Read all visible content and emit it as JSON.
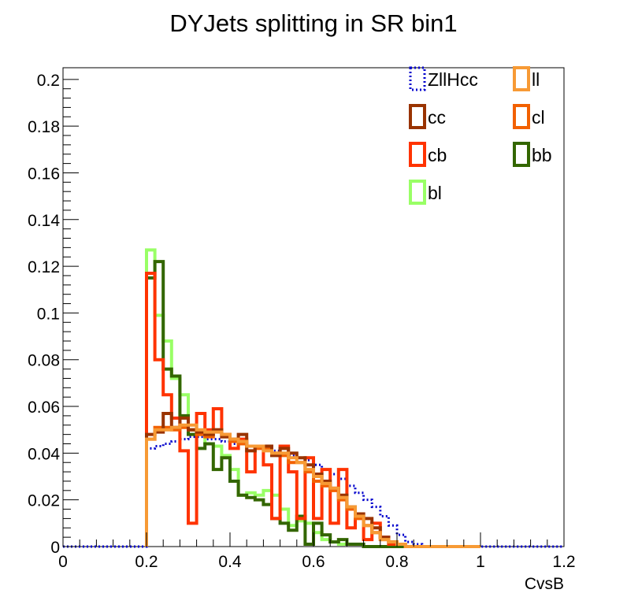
{
  "chart_data": {
    "type": "line",
    "title": "DYJets splitting in SR bin1",
    "xlabel": "CvsB",
    "ylabel": "",
    "xlim": [
      0,
      1.2
    ],
    "ylim": [
      0,
      0.205
    ],
    "x_ticks": [
      0,
      0.2,
      0.4,
      0.6,
      0.8,
      1,
      1.2
    ],
    "x_tick_labels": [
      "0",
      "0.2",
      "0.4",
      "0.6",
      "0.8",
      "1",
      "1.2"
    ],
    "y_ticks": [
      0,
      0.02,
      0.04,
      0.06,
      0.08,
      0.1,
      0.12,
      0.14,
      0.16,
      0.18,
      0.2
    ],
    "y_tick_labels": [
      "0",
      "0.02",
      "0.04",
      "0.06",
      "0.08",
      "0.1",
      "0.12",
      "0.14",
      "0.16",
      "0.18",
      "0.2"
    ],
    "grid": false,
    "legend": "top-right",
    "bin_edges_start": 0.2,
    "bin_width": 0.02,
    "series": [
      {
        "name": "ZllHcc",
        "color": "#0000cc",
        "style": "dotted",
        "underflow": [
          0,
          0.2
        ],
        "values": [
          0.042,
          0.043,
          0.044,
          0.045,
          0.046,
          0.047,
          0.047,
          0.046,
          0.046,
          0.045,
          0.044,
          0.044,
          0.043,
          0.043,
          0.042,
          0.041,
          0.04,
          0.039,
          0.038,
          0.037,
          0.035,
          0.033,
          0.031,
          0.029,
          0.026,
          0.023,
          0.02,
          0.017,
          0.013,
          0.009,
          0.005,
          0.002,
          0.001,
          0.0,
          0.0,
          0.0,
          0.0,
          0.0,
          0.0,
          0.0
        ]
      },
      {
        "name": "ll",
        "color": "#f79a35",
        "style": "solid",
        "values": [
          0.046,
          0.05,
          0.05,
          0.051,
          0.052,
          0.052,
          0.05,
          0.049,
          0.049,
          0.048,
          0.046,
          0.045,
          0.043,
          0.043,
          0.041,
          0.04,
          0.04,
          0.038,
          0.036,
          0.033,
          0.03,
          0.027,
          0.025,
          0.021,
          0.017,
          0.013,
          0.009,
          0.006,
          0.003,
          0.002,
          0.001,
          0,
          0,
          0,
          0,
          0,
          0,
          0,
          0,
          0
        ]
      },
      {
        "name": "cc",
        "color": "#993300",
        "style": "solid",
        "values": [
          0.048,
          0.049,
          0.057,
          0.051,
          0.055,
          0.05,
          0.049,
          0.048,
          0.05,
          0.047,
          0.046,
          0.048,
          0.041,
          0.043,
          0.043,
          0.039,
          0.042,
          0.04,
          0.038,
          0.035,
          0.031,
          0.028,
          0.025,
          0.022,
          0.017,
          0.014,
          0.012,
          0.008,
          0.004,
          0.002,
          0.001,
          0,
          0,
          0,
          0,
          0,
          0,
          0,
          0,
          0
        ]
      },
      {
        "name": "cl",
        "color": "#f26000",
        "style": "solid",
        "values": [
          0.046,
          0.051,
          0.051,
          0.05,
          0.051,
          0.05,
          0.048,
          0.047,
          0.05,
          0.047,
          0.045,
          0.044,
          0.043,
          0.042,
          0.042,
          0.04,
          0.039,
          0.036,
          0.036,
          0.032,
          0.028,
          0.026,
          0.024,
          0.02,
          0.016,
          0.012,
          0.009,
          0.006,
          0.003,
          0.002,
          0.001,
          0,
          0,
          0,
          0,
          0,
          0,
          0,
          0,
          0
        ]
      },
      {
        "name": "cb",
        "color": "#ff3300",
        "style": "solid",
        "values": [
          0.117,
          0.08,
          0.065,
          0.055,
          0.041,
          0.01,
          0.057,
          0.05,
          0.059,
          0.048,
          0.042,
          0.046,
          0.032,
          0.043,
          0.035,
          0.012,
          0.043,
          0.032,
          0.012,
          0.038,
          0.012,
          0.033,
          0.01,
          0.033,
          0.008,
          0.014,
          0.003,
          0.01,
          0.004,
          0.001,
          0.001,
          0,
          0,
          0,
          0,
          0,
          0,
          0,
          0,
          0
        ]
      },
      {
        "name": "bb",
        "color": "#336600",
        "style": "solid",
        "values": [
          0.115,
          0.122,
          0.076,
          0.073,
          0.056,
          0.048,
          0.042,
          0.044,
          0.033,
          0.038,
          0.028,
          0.022,
          0.021,
          0.02,
          0.018,
          0.012,
          0.01,
          0.007,
          0.013,
          0.001,
          0.01,
          0.005,
          0.002,
          0.003,
          0.001,
          0.001,
          0,
          0,
          0,
          0,
          0,
          0,
          0,
          0,
          0,
          0,
          0,
          0,
          0,
          0
        ]
      },
      {
        "name": "bl",
        "color": "#99ff66",
        "style": "solid",
        "values": [
          0.127,
          0.099,
          0.088,
          0.072,
          0.065,
          0.05,
          0.048,
          0.044,
          0.043,
          0.039,
          0.033,
          0.022,
          0.023,
          0.022,
          0.024,
          0.022,
          0.016,
          0.009,
          0.011,
          0.01,
          0.006,
          0.003,
          0.002,
          0.001,
          0.001,
          0.001,
          0,
          0,
          0,
          0,
          0,
          0,
          0,
          0,
          0,
          0,
          0,
          0,
          0,
          0
        ]
      }
    ]
  }
}
